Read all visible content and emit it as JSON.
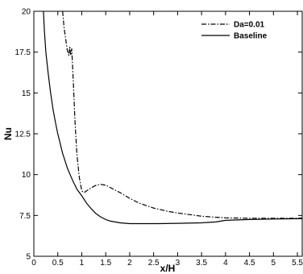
{
  "chart_data": {
    "type": "line",
    "title": "",
    "xlabel": "x/H",
    "ylabel": "Nu",
    "xlim": [
      0,
      5.6
    ],
    "ylim": [
      5,
      20
    ],
    "x_ticks": [
      "0",
      "0.5",
      "1",
      "1.5",
      "2",
      "2.5",
      "3",
      "3.5",
      "4",
      "4.5",
      "5",
      "5.5"
    ],
    "y_ticks": [
      "5",
      "7.5",
      "10",
      "12.5",
      "15",
      "17.5",
      "20"
    ],
    "grid": false,
    "legend_position": "top-right",
    "series": [
      {
        "name": "Da=0.01",
        "style": "dash-dot",
        "color": "#000000",
        "x": [
          0.6,
          0.63,
          0.66,
          0.7,
          0.73,
          0.75,
          0.77,
          0.79,
          0.81,
          0.83,
          0.86,
          0.9,
          0.95,
          1.0,
          1.05,
          1.1,
          1.2,
          1.3,
          1.4,
          1.5,
          1.6,
          1.8,
          2.0,
          2.2,
          2.5,
          2.8,
          3.0,
          3.5,
          4.0,
          4.5,
          5.0,
          5.5,
          5.6
        ],
        "y": [
          20.0,
          19.0,
          18.4,
          17.6,
          17.3,
          17.8,
          17.3,
          17.7,
          16.5,
          15.2,
          13.2,
          11.2,
          9.8,
          9.0,
          8.9,
          9.0,
          9.2,
          9.35,
          9.4,
          9.35,
          9.2,
          8.9,
          8.55,
          8.25,
          7.95,
          7.75,
          7.65,
          7.45,
          7.35,
          7.33,
          7.33,
          7.33,
          7.34
        ]
      },
      {
        "name": "Baseline",
        "style": "solid",
        "color": "#000000",
        "x": [
          0.2,
          0.22,
          0.25,
          0.3,
          0.35,
          0.4,
          0.45,
          0.5,
          0.6,
          0.7,
          0.8,
          0.9,
          1.0,
          1.1,
          1.2,
          1.3,
          1.4,
          1.5,
          1.6,
          1.8,
          2.0,
          2.3,
          2.6,
          3.0,
          3.5,
          3.8,
          4.0,
          4.5,
          5.0,
          5.5,
          5.6
        ],
        "y": [
          20.0,
          18.8,
          17.5,
          16.2,
          15.0,
          14.0,
          13.2,
          12.5,
          11.3,
          10.4,
          9.7,
          9.1,
          8.7,
          8.25,
          7.9,
          7.6,
          7.4,
          7.25,
          7.15,
          7.05,
          7.0,
          7.0,
          7.0,
          7.02,
          7.05,
          7.1,
          7.2,
          7.25,
          7.28,
          7.3,
          7.3
        ]
      }
    ]
  }
}
